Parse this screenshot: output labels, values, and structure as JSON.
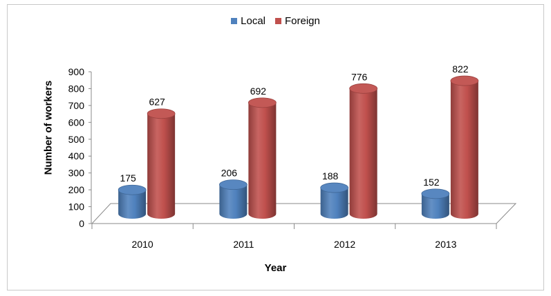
{
  "chart_data": {
    "type": "bar",
    "categories": [
      "2010",
      "2011",
      "2012",
      "2013"
    ],
    "series": [
      {
        "name": "Local",
        "values": [
          175,
          206,
          188,
          152
        ],
        "color": "#4f81bd"
      },
      {
        "name": "Foreign",
        "values": [
          627,
          692,
          776,
          822
        ],
        "color": "#c0504d"
      }
    ],
    "title": "",
    "xlabel": "Year",
    "ylabel": "Number of workers",
    "ylim": [
      0,
      900
    ],
    "yticks": [
      0,
      100,
      200,
      300,
      400,
      500,
      600,
      700,
      800,
      900
    ],
    "grid": false,
    "legend": "top-center",
    "style": "3d-cylinder"
  }
}
